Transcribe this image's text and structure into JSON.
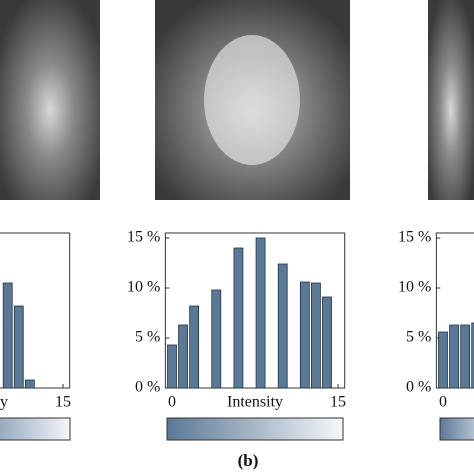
{
  "caption": "(b)",
  "chart_data": [
    {
      "type": "bar",
      "xlabel": "Intensity",
      "x": [
        10,
        11,
        12
      ],
      "values": [
        10.5,
        8.2,
        0.8
      ],
      "xlim": [
        -0.6,
        15.6
      ],
      "ylim": [
        0,
        15.5
      ],
      "xticks": [
        15
      ],
      "color": "#5b7896"
    },
    {
      "type": "bar",
      "xlabel": "Intensity",
      "x": [
        0,
        1,
        2,
        4,
        6,
        8,
        10,
        12,
        13,
        14
      ],
      "values": [
        4.3,
        6.3,
        8.2,
        9.8,
        14,
        15,
        12.4,
        10.6,
        10.5,
        9.1
      ],
      "xlim": [
        -0.6,
        15.6
      ],
      "ylim": [
        0,
        15.5
      ],
      "xticks": [
        0,
        15
      ],
      "yticks": [
        {
          "value": 0,
          "label": "0 %"
        },
        {
          "value": 5,
          "label": "5 %"
        },
        {
          "value": 10,
          "label": "10 %"
        },
        {
          "value": 15,
          "label": "15 %"
        }
      ],
      "color": "#5b7896"
    },
    {
      "type": "bar",
      "x": [
        0,
        1,
        2,
        3
      ],
      "values": [
        5.6,
        6.3,
        6.3,
        6.5
      ],
      "xlim": [
        -0.6,
        15.6
      ],
      "ylim": [
        0,
        15.5
      ],
      "xticks": [
        0
      ],
      "yticks": [
        {
          "value": 0,
          "label": "0 %"
        },
        {
          "value": 5,
          "label": "5 %"
        },
        {
          "value": 10,
          "label": "10 %"
        },
        {
          "value": 15,
          "label": "15 %"
        }
      ],
      "color": "#5b7896"
    }
  ]
}
